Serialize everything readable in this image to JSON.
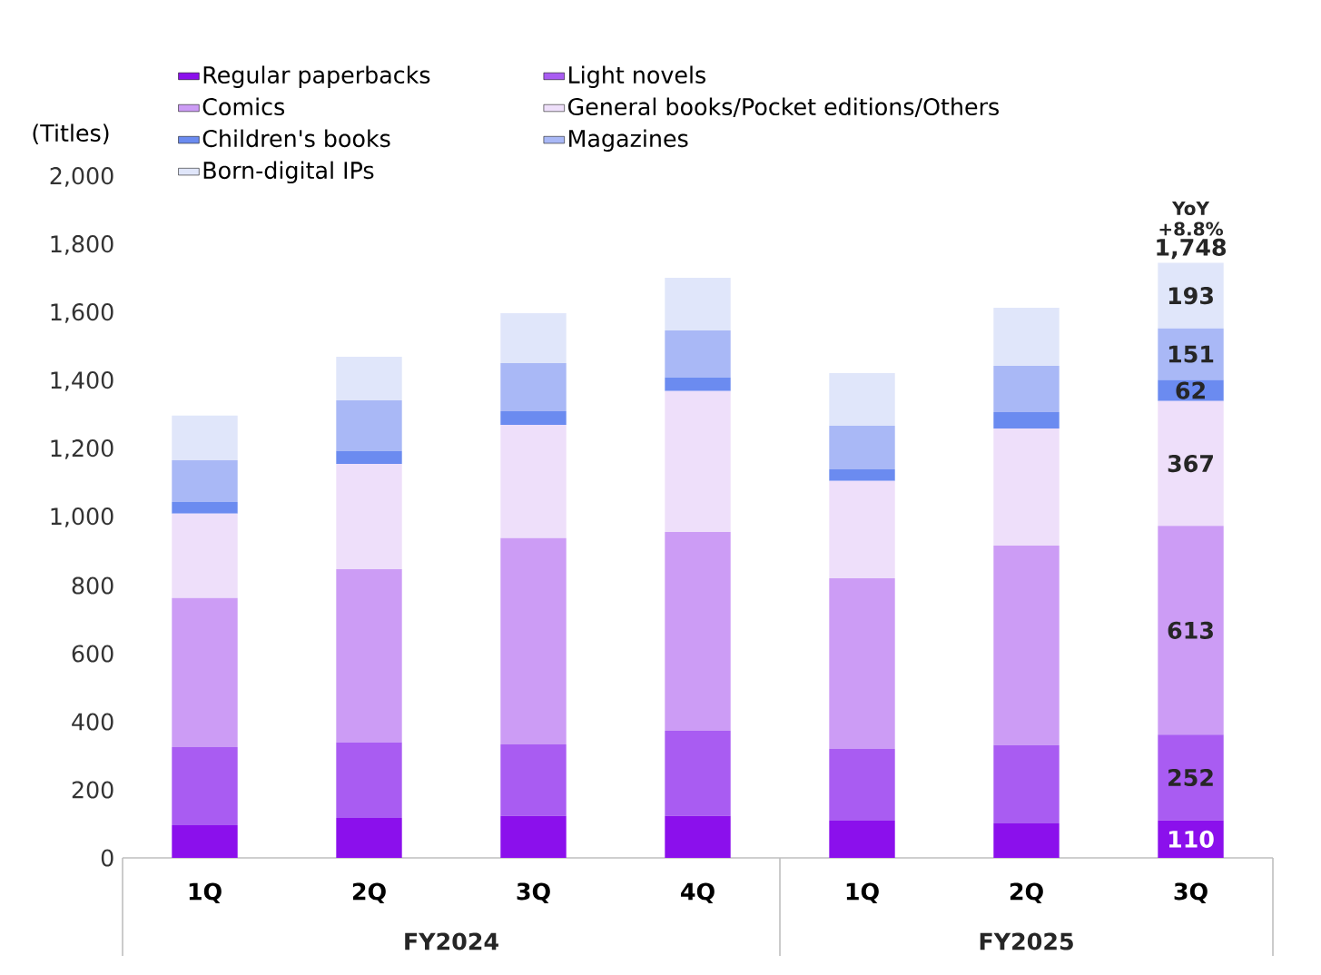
{
  "chart_data": {
    "type": "bar",
    "stacked": true,
    "ylabel": "(Titles)",
    "categories": [
      "1Q",
      "2Q",
      "3Q",
      "4Q",
      "1Q",
      "2Q",
      "3Q"
    ],
    "series": [
      {
        "name": "Regular paperbacks",
        "color": "#8b10ec",
        "values": [
          96,
          117,
          123,
          123,
          109,
          101,
          110
        ],
        "value_labels": [
          null,
          null,
          null,
          null,
          null,
          null,
          "110"
        ]
      },
      {
        "name": "Light novels",
        "color": "#a95cf2",
        "values": [
          229,
          222,
          210,
          250,
          211,
          230,
          252
        ],
        "value_labels": [
          null,
          null,
          null,
          null,
          null,
          null,
          "252"
        ]
      },
      {
        "name": "Comics",
        "color": "#cc9cf5",
        "values": [
          438,
          509,
          606,
          584,
          501,
          586,
          613
        ],
        "value_labels": [
          null,
          null,
          null,
          null,
          null,
          null,
          "613"
        ]
      },
      {
        "name": "General books/Pocket editions/Others",
        "color": "#eedffa",
        "values": [
          248,
          309,
          333,
          414,
          286,
          344,
          367
        ],
        "value_labels": [
          null,
          null,
          null,
          null,
          null,
          null,
          "367"
        ]
      },
      {
        "name": "Children's books",
        "color": "#6b8bf0",
        "values": [
          34,
          38,
          40,
          40,
          34,
          48,
          62
        ],
        "value_labels": [
          null,
          null,
          null,
          null,
          null,
          null,
          "62"
        ]
      },
      {
        "name": "Magazines",
        "color": "#a9b8f6",
        "values": [
          123,
          149,
          141,
          138,
          128,
          136,
          151
        ],
        "value_labels": [
          null,
          null,
          null,
          null,
          null,
          null,
          "151"
        ]
      },
      {
        "name": "Born-digital IPs",
        "color": "#e0e6fa",
        "values": [
          131,
          128,
          147,
          155,
          155,
          171,
          193
        ],
        "value_labels": [
          null,
          null,
          null,
          null,
          null,
          null,
          "193"
        ]
      }
    ],
    "totals": [
      null,
      null,
      null,
      null,
      null,
      null,
      "1,748"
    ],
    "annotations": [
      "YoY +8.8%",
      "FY2024",
      "FY2025"
    ],
    "ylim": [
      0,
      2000
    ],
    "yticks": [
      0,
      200,
      400,
      600,
      800,
      {
        "value": 1000,
        "label": "1,000"
      },
      {
        "value": 1200,
        "label": "1,200"
      },
      {
        "value": 1400,
        "label": "1,400"
      },
      {
        "value": 1600,
        "label": "1,600"
      },
      {
        "value": 1800,
        "label": "1,800"
      },
      {
        "value": 2000,
        "label": "2,000"
      }
    ],
    "legend": "top left",
    "grid": false
  }
}
